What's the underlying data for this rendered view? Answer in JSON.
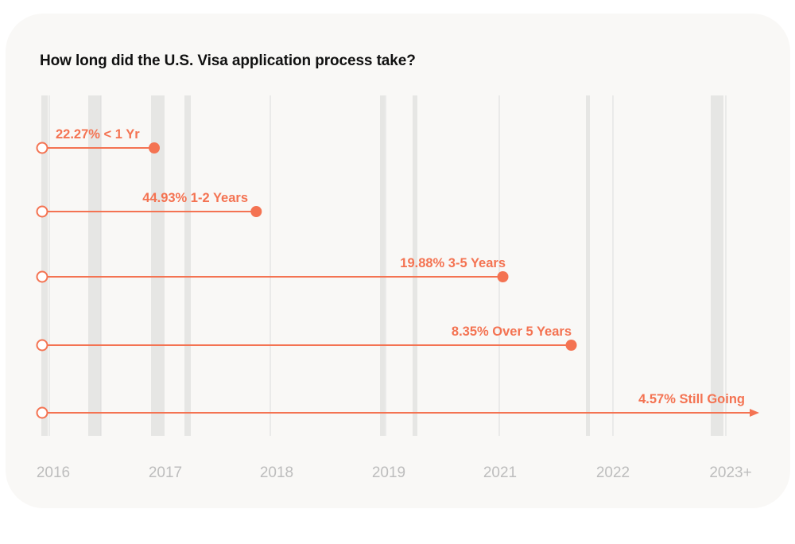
{
  "title": "How long did the U.S. Visa application process take?",
  "colors": {
    "accent": "#f47352",
    "band": "#e6e6e4",
    "gridline": "#dcdcdc",
    "tick_label": "#bdbdbd",
    "card_background": "#f9f8f6",
    "title": "#111111"
  },
  "chart_data": {
    "type": "timeline-range",
    "title": "How long did the U.S. Visa application process take?",
    "x_tick_labels": [
      "2016",
      "2017",
      "2018",
      "2019",
      "2021",
      "2022",
      "2023+"
    ],
    "x_tick_values": [
      0,
      1,
      2,
      3,
      4,
      5,
      6
    ],
    "xlim": [
      0,
      6.35
    ],
    "grid": true,
    "series": [
      {
        "label": "22.27% < 1 Yr",
        "percent": 22.27,
        "category": "< 1 Yr",
        "start": 0,
        "end": 1.0,
        "open_ended": false
      },
      {
        "label": "44.93% 1-2 Years",
        "percent": 44.93,
        "category": "1-2 Years",
        "start": 0,
        "end": 1.91,
        "open_ended": false
      },
      {
        "label": "19.88% 3-5 Years",
        "percent": 19.88,
        "category": "3-5 Years",
        "start": 0,
        "end": 4.11,
        "open_ended": false
      },
      {
        "label": "8.35% Over 5 Years",
        "percent": 8.35,
        "category": "Over 5 Years",
        "start": 0,
        "end": 4.72,
        "open_ended": false
      },
      {
        "label": "4.57%  Still Going",
        "percent": 4.57,
        "category": "Still Going",
        "start": 0,
        "end": 6.3,
        "open_ended": true
      }
    ]
  }
}
